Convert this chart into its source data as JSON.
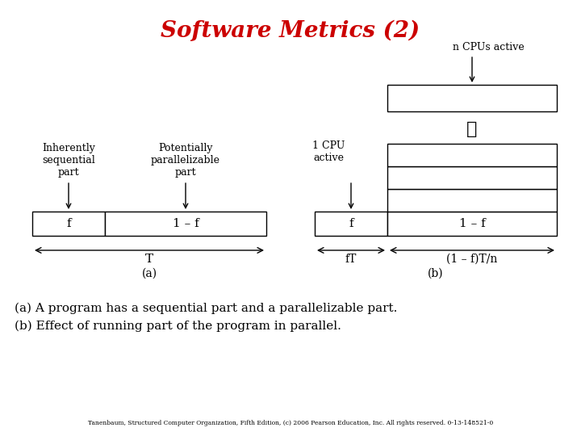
{
  "title": "Software Metrics (2)",
  "title_color": "#cc0000",
  "title_fontsize": 20,
  "bg_color": "#ffffff",
  "caption_line1": "(a) A program has a sequential part and a parallelizable part.",
  "caption_line2": "(b) Effect of running part of the program in parallel.",
  "footnote": "Tanenbaum, Structured Computer Organization, Fifth Edition, (c) 2006 Pearson Education, Inc. All rights reserved. 0-13-148521-0",
  "label_a": "(a)",
  "label_b": "(b)",
  "lw": 1.0
}
